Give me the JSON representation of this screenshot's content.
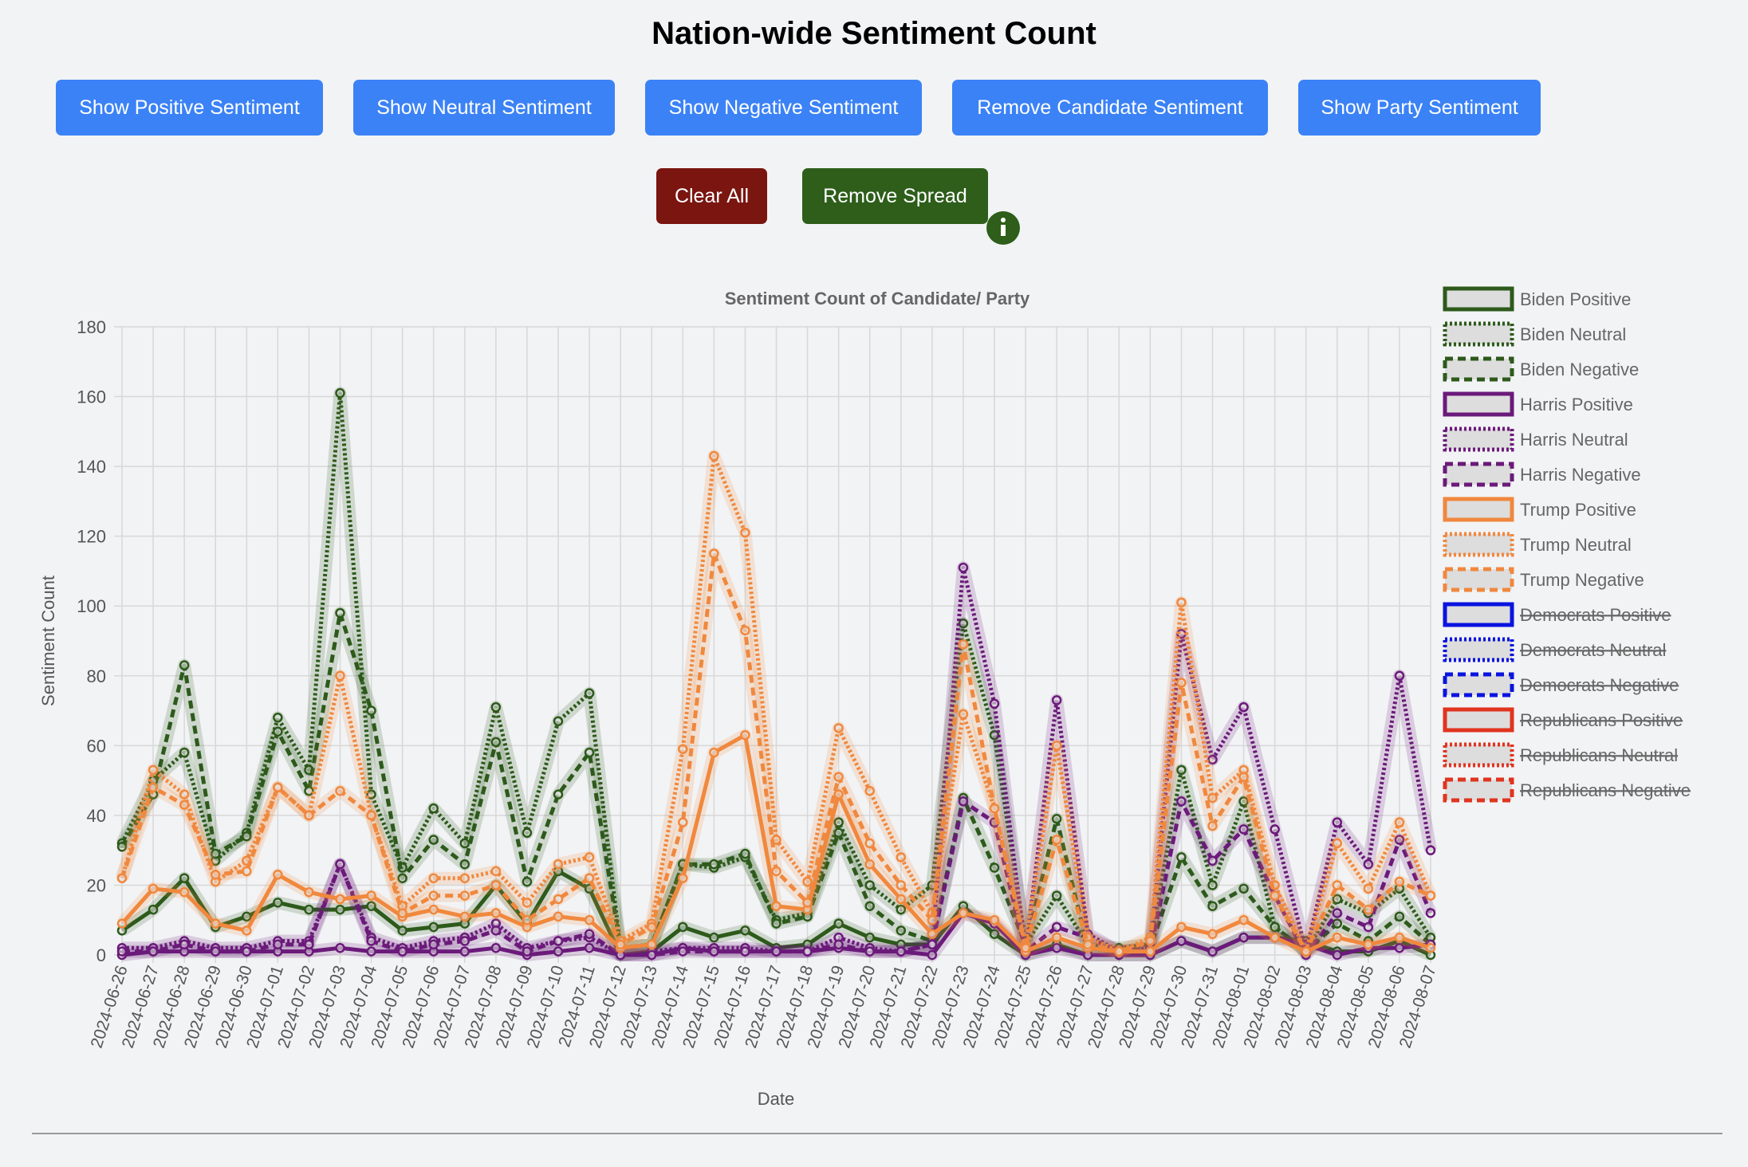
{
  "page": {
    "title": "Nation-wide Sentiment Count",
    "buttons": [
      "Show Positive Sentiment",
      "Show Neutral Sentiment",
      "Show Negative Sentiment",
      "Remove Candidate Sentiment",
      "Show Party Sentiment"
    ],
    "clear_button": "Clear All",
    "spread_button": "Remove Spread"
  },
  "chart_data": {
    "type": "line",
    "title": "Sentiment Count of Candidate/ Party",
    "x_label": "Date",
    "y_label": "Sentiment Count",
    "categories": [
      "2024-06-26",
      "2024-06-27",
      "2024-06-28",
      "2024-06-29",
      "2024-06-30",
      "2024-07-01",
      "2024-07-02",
      "2024-07-03",
      "2024-07-04",
      "2024-07-05",
      "2024-07-06",
      "2024-07-07",
      "2024-07-08",
      "2024-07-09",
      "2024-07-10",
      "2024-07-11",
      "2024-07-12",
      "2024-07-13",
      "2024-07-14",
      "2024-07-15",
      "2024-07-16",
      "2024-07-17",
      "2024-07-18",
      "2024-07-19",
      "2024-07-20",
      "2024-07-21",
      "2024-07-22",
      "2024-07-23",
      "2024-07-24",
      "2024-07-25",
      "2024-07-26",
      "2024-07-27",
      "2024-07-28",
      "2024-07-29",
      "2024-07-30",
      "2024-07-31",
      "2024-08-01",
      "2024-08-02",
      "2024-08-03",
      "2024-08-04",
      "2024-08-05",
      "2024-08-06",
      "2024-08-07"
    ],
    "ylim": [
      0,
      180
    ],
    "yticks": [
      0,
      20,
      40,
      60,
      80,
      100,
      120,
      140,
      160,
      180
    ],
    "grid": true,
    "legend": "right",
    "series": [
      {
        "name": "Biden Positive",
        "color": "#2d5a1b",
        "dash": "solid",
        "values": [
          7,
          13,
          22,
          8,
          11,
          15,
          13,
          13,
          14,
          7,
          8,
          9,
          20,
          9,
          24,
          19,
          0,
          1,
          8,
          5,
          7,
          2,
          3,
          9,
          5,
          3,
          3,
          14,
          6,
          0,
          3,
          0,
          0,
          0,
          4,
          1,
          5,
          5,
          4,
          1,
          1,
          4,
          0
        ]
      },
      {
        "name": "Biden Neutral",
        "color": "#2d5a1b",
        "dash": "dotted",
        "values": [
          32,
          50,
          58,
          27,
          35,
          68,
          53,
          161,
          46,
          25,
          42,
          32,
          71,
          35,
          67,
          75,
          2,
          3,
          26,
          25,
          28,
          10,
          12,
          38,
          20,
          13,
          20,
          95,
          63,
          3,
          17,
          3,
          2,
          3,
          53,
          20,
          44,
          8,
          1,
          16,
          12,
          19,
          5
        ]
      },
      {
        "name": "Biden Negative",
        "color": "#2d5a1b",
        "dash": "dashed",
        "values": [
          31,
          46,
          83,
          29,
          34,
          64,
          47,
          98,
          70,
          22,
          33,
          26,
          61,
          21,
          46,
          58,
          2,
          3,
          26,
          26,
          29,
          9,
          11,
          35,
          14,
          7,
          4,
          45,
          25,
          3,
          39,
          2,
          1,
          2,
          28,
          14,
          19,
          8,
          1,
          9,
          4,
          11,
          3
        ]
      },
      {
        "name": "Harris Positive",
        "color": "#6b1a7a",
        "dash": "solid",
        "values": [
          0,
          1,
          1,
          1,
          1,
          1,
          1,
          2,
          1,
          1,
          1,
          1,
          2,
          0,
          1,
          2,
          0,
          0,
          2,
          1,
          1,
          1,
          1,
          2,
          1,
          1,
          0,
          12,
          9,
          0,
          2,
          0,
          0,
          0,
          4,
          1,
          5,
          5,
          3,
          0,
          2,
          2,
          3
        ]
      },
      {
        "name": "Harris Neutral",
        "color": "#6b1a7a",
        "dash": "dotted",
        "values": [
          2,
          2,
          4,
          2,
          2,
          4,
          4,
          26,
          5,
          2,
          4,
          5,
          9,
          2,
          4,
          5,
          0,
          1,
          2,
          2,
          2,
          1,
          1,
          5,
          2,
          1,
          3,
          111,
          72,
          1,
          73,
          6,
          1,
          2,
          92,
          56,
          71,
          36,
          1,
          38,
          26,
          80,
          30
        ]
      },
      {
        "name": "Harris Negative",
        "color": "#6b1a7a",
        "dash": "dashed",
        "values": [
          1,
          1,
          3,
          1,
          1,
          3,
          3,
          26,
          4,
          1,
          3,
          4,
          7,
          1,
          4,
          6,
          0,
          0,
          1,
          1,
          1,
          1,
          1,
          3,
          1,
          1,
          3,
          44,
          38,
          1,
          8,
          5,
          1,
          1,
          44,
          27,
          36,
          17,
          0,
          12,
          8,
          33,
          12
        ]
      },
      {
        "name": "Trump Positive",
        "color": "#f0883e",
        "dash": "solid",
        "values": [
          9,
          19,
          18,
          9,
          7,
          23,
          18,
          16,
          17,
          11,
          13,
          11,
          12,
          8,
          11,
          10,
          2,
          3,
          22,
          58,
          63,
          14,
          13,
          46,
          26,
          16,
          6,
          12,
          10,
          1,
          5,
          2,
          1,
          1,
          8,
          6,
          10,
          5,
          1,
          5,
          3,
          5,
          2
        ]
      },
      {
        "name": "Trump Neutral",
        "color": "#f0883e",
        "dash": "dotted",
        "values": [
          22,
          53,
          46,
          21,
          27,
          48,
          40,
          80,
          40,
          14,
          22,
          22,
          24,
          15,
          26,
          28,
          4,
          9,
          59,
          143,
          121,
          33,
          21,
          65,
          47,
          28,
          12,
          69,
          42,
          3,
          60,
          5,
          1,
          5,
          101,
          45,
          53,
          20,
          1,
          32,
          19,
          38,
          17
        ]
      },
      {
        "name": "Trump Negative",
        "color": "#f0883e",
        "dash": "dashed",
        "values": [
          22,
          48,
          43,
          23,
          24,
          48,
          40,
          47,
          40,
          12,
          17,
          17,
          20,
          10,
          16,
          22,
          3,
          8,
          38,
          115,
          93,
          24,
          15,
          51,
          32,
          20,
          10,
          89,
          42,
          2,
          33,
          3,
          1,
          4,
          78,
          37,
          51,
          17,
          1,
          20,
          13,
          21,
          17
        ]
      }
    ],
    "hidden_series": [
      {
        "name": "Democrats Positive",
        "color": "#0a14e0",
        "dash": "solid"
      },
      {
        "name": "Democrats Neutral",
        "color": "#0a14e0",
        "dash": "dotted"
      },
      {
        "name": "Democrats Negative",
        "color": "#0a14e0",
        "dash": "dashed"
      },
      {
        "name": "Republicans Positive",
        "color": "#e0341f",
        "dash": "solid"
      },
      {
        "name": "Republicans Neutral",
        "color": "#e0341f",
        "dash": "dotted"
      },
      {
        "name": "Republicans Negative",
        "color": "#e0341f",
        "dash": "dashed"
      }
    ]
  }
}
